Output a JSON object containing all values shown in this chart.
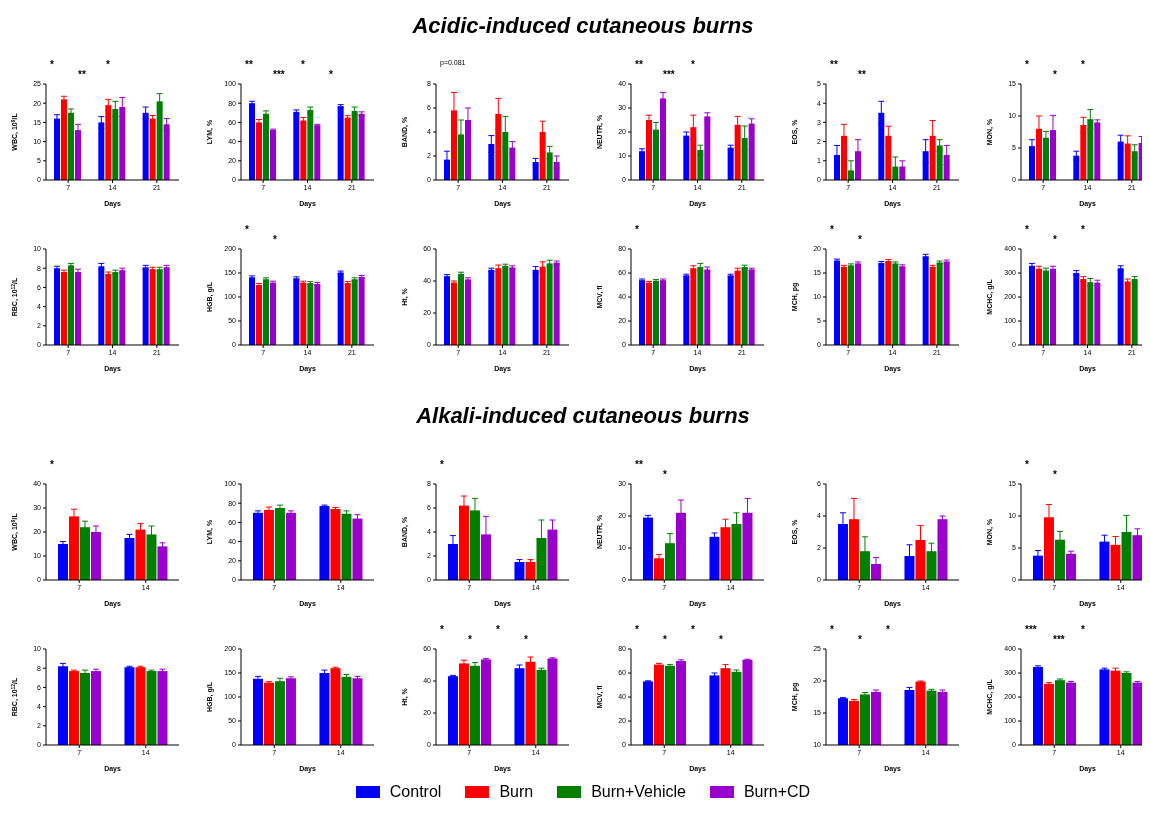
{
  "chart_data": [
    {
      "type": "other",
      "title": "Acidic-induced cutaneous burns"
    },
    {
      "type": "bar",
      "xlabel": "Days",
      "ylabel": "WBC, 10$^{9}$/L",
      "categories": [
        "7",
        "14",
        "21"
      ],
      "ylim": [
        0,
        25
      ],
      "yticks": [
        0,
        5,
        10,
        15,
        20,
        25
      ],
      "annotations": [
        "*",
        "**",
        "*"
      ],
      "series": [
        {
          "color": "#0000ff",
          "values": [
            16,
            15,
            17.5
          ],
          "errors": [
            1,
            1.5,
            1.5
          ]
        },
        {
          "color": "#ff0000",
          "values": [
            21,
            19.5,
            16
          ],
          "errors": [
            0.8,
            1.5,
            0.8
          ]
        },
        {
          "color": "#008000",
          "values": [
            17.5,
            18.5,
            20.5
          ],
          "errors": [
            1,
            2,
            2
          ]
        },
        {
          "color": "#9900cc",
          "values": [
            13,
            19,
            14.5
          ],
          "errors": [
            1.5,
            2.5,
            1.5
          ]
        }
      ]
    },
    {
      "type": "bar",
      "xlabel": "Days",
      "ylabel": "LYM, %",
      "categories": [
        "7",
        "14",
        "21"
      ],
      "ylim": [
        0,
        100
      ],
      "yticks": [
        0,
        20,
        40,
        60,
        80,
        100
      ],
      "annotations": [
        "**",
        "***",
        "*",
        "*"
      ],
      "series": [
        {
          "color": "#0000ff",
          "values": [
            80,
            71,
            77
          ],
          "errors": [
            2,
            2,
            1.5
          ]
        },
        {
          "color": "#ff0000",
          "values": [
            60,
            62,
            65
          ],
          "errors": [
            3,
            3,
            2
          ]
        },
        {
          "color": "#008000",
          "values": [
            69,
            73,
            72
          ],
          "errors": [
            3,
            3,
            4
          ]
        },
        {
          "color": "#9900cc",
          "values": [
            52,
            57,
            69
          ],
          "errors": [
            1,
            1,
            2
          ]
        }
      ]
    },
    {
      "type": "bar",
      "xlabel": "Days",
      "ylabel": "BAND, %",
      "categories": [
        "7",
        "14",
        "21"
      ],
      "ylim": [
        0,
        8
      ],
      "yticks": [
        0,
        2,
        4,
        6,
        8
      ],
      "annotations": [
        "p=0.081"
      ],
      "series": [
        {
          "color": "#0000ff",
          "values": [
            1.7,
            3,
            1.5
          ],
          "errors": [
            0.7,
            0.7,
            0.3
          ]
        },
        {
          "color": "#ff0000",
          "values": [
            5.8,
            5.5,
            4
          ],
          "errors": [
            1.5,
            1.3,
            0.9
          ]
        },
        {
          "color": "#008000",
          "values": [
            3.8,
            4,
            2.3
          ],
          "errors": [
            1.2,
            1.3,
            0.5
          ]
        },
        {
          "color": "#9900cc",
          "values": [
            5,
            2.7,
            1.5
          ],
          "errors": [
            1,
            0.5,
            0.5
          ]
        }
      ]
    },
    {
      "type": "bar",
      "xlabel": "Days",
      "ylabel": "NEUTR, %",
      "categories": [
        "7",
        "14",
        "21"
      ],
      "ylim": [
        0,
        40
      ],
      "yticks": [
        0,
        10,
        20,
        30,
        40
      ],
      "annotations": [
        "**",
        "***",
        "*"
      ],
      "series": [
        {
          "color": "#0000ff",
          "values": [
            12,
            18.5,
            13.5
          ],
          "errors": [
            1,
            1.5,
            1
          ]
        },
        {
          "color": "#ff0000",
          "values": [
            25,
            22,
            23
          ],
          "errors": [
            2,
            5,
            3.5
          ]
        },
        {
          "color": "#008000",
          "values": [
            21,
            12.5,
            17.5
          ],
          "errors": [
            3,
            2,
            5
          ]
        },
        {
          "color": "#9900cc",
          "values": [
            34,
            26.5,
            23.5
          ],
          "errors": [
            2.5,
            1.5,
            2
          ]
        }
      ]
    },
    {
      "type": "bar",
      "xlabel": "Days",
      "ylabel": "EOS, %",
      "categories": [
        "7",
        "14",
        "21"
      ],
      "ylim": [
        0,
        5
      ],
      "yticks": [
        0,
        1,
        2,
        3,
        4,
        5
      ],
      "annotations": [
        "**",
        "**"
      ],
      "series": [
        {
          "color": "#0000ff",
          "values": [
            1.3,
            3.5,
            1.5
          ],
          "errors": [
            0.5,
            0.6,
            0.6
          ]
        },
        {
          "color": "#ff0000",
          "values": [
            2.3,
            2.3,
            2.3
          ],
          "errors": [
            0.6,
            0.5,
            0.8
          ]
        },
        {
          "color": "#008000",
          "values": [
            0.5,
            0.7,
            1.8
          ],
          "errors": [
            0.5,
            0.5,
            0.3
          ]
        },
        {
          "color": "#9900cc",
          "values": [
            1.5,
            0.7,
            1.3
          ],
          "errors": [
            0.6,
            0.3,
            0.5
          ]
        }
      ]
    },
    {
      "type": "bar",
      "xlabel": "Days",
      "ylabel": "MON, %",
      "categories": [
        "7",
        "14",
        "21"
      ],
      "ylim": [
        0,
        15
      ],
      "yticks": [
        0,
        5,
        10,
        15
      ],
      "annotations": [
        "*",
        "*",
        "*"
      ],
      "series": [
        {
          "color": "#0000ff",
          "values": [
            5.3,
            3.8,
            6
          ],
          "errors": [
            1,
            0.7,
            1
          ]
        },
        {
          "color": "#ff0000",
          "values": [
            8,
            8.6,
            5.7
          ],
          "errors": [
            2,
            1.2,
            1.2
          ]
        },
        {
          "color": "#008000",
          "values": [
            6.6,
            9.5,
            4.5
          ],
          "errors": [
            1,
            1.5,
            1
          ]
        },
        {
          "color": "#9900cc",
          "values": [
            7.8,
            9,
            5.8
          ],
          "errors": [
            2.3,
            0.4,
            1
          ]
        }
      ]
    },
    {
      "type": "bar",
      "xlabel": "Days",
      "ylabel": "RBC, 10$^{12}$/L",
      "categories": [
        "7",
        "14",
        "21"
      ],
      "ylim": [
        0,
        10
      ],
      "yticks": [
        0,
        2,
        4,
        6,
        8,
        10
      ],
      "series": [
        {
          "color": "#0000ff",
          "values": [
            8,
            8.2,
            8.1
          ],
          "errors": [
            0.2,
            0.3,
            0.2
          ]
        },
        {
          "color": "#ff0000",
          "values": [
            7.6,
            7.4,
            7.9
          ],
          "errors": [
            0.2,
            0.2,
            0.2
          ]
        },
        {
          "color": "#008000",
          "values": [
            8.3,
            7.6,
            7.9
          ],
          "errors": [
            0.2,
            0.2,
            0.2
          ]
        },
        {
          "color": "#9900cc",
          "values": [
            7.6,
            7.8,
            8.1
          ],
          "errors": [
            0.3,
            0.2,
            0.2
          ]
        }
      ]
    },
    {
      "type": "bar",
      "xlabel": "Days",
      "ylabel": "HGB, g/L",
      "categories": [
        "7",
        "14",
        "21"
      ],
      "ylim": [
        0,
        200
      ],
      "yticks": [
        0,
        50,
        100,
        150,
        200
      ],
      "annotations": [
        "*",
        "*"
      ],
      "series": [
        {
          "color": "#0000ff",
          "values": [
            141,
            139,
            151
          ],
          "errors": [
            3,
            3,
            3
          ]
        },
        {
          "color": "#ff0000",
          "values": [
            125,
            130,
            129
          ],
          "errors": [
            3,
            3,
            3
          ]
        },
        {
          "color": "#008000",
          "values": [
            137,
            129,
            137
          ],
          "errors": [
            3,
            3,
            3
          ]
        },
        {
          "color": "#9900cc",
          "values": [
            130,
            127,
            142
          ],
          "errors": [
            3,
            3,
            3
          ]
        }
      ]
    },
    {
      "type": "bar",
      "xlabel": "Days",
      "ylabel": "Ht, %",
      "categories": [
        "7",
        "14",
        "21"
      ],
      "ylim": [
        0,
        60
      ],
      "yticks": [
        0,
        20,
        40,
        60
      ],
      "series": [
        {
          "color": "#0000ff",
          "values": [
            43,
            47,
            47
          ],
          "errors": [
            1,
            1,
            2
          ]
        },
        {
          "color": "#ff0000",
          "values": [
            39,
            48,
            49
          ],
          "errors": [
            1,
            2,
            3
          ]
        },
        {
          "color": "#008000",
          "values": [
            44.5,
            49.5,
            51
          ],
          "errors": [
            1,
            1,
            2
          ]
        },
        {
          "color": "#9900cc",
          "values": [
            41,
            48.5,
            51.5
          ],
          "errors": [
            1,
            1,
            1
          ]
        }
      ]
    },
    {
      "type": "bar",
      "xlabel": "Days",
      "ylabel": "MCV, fl",
      "categories": [
        "7",
        "14",
        "21"
      ],
      "ylim": [
        0,
        80
      ],
      "yticks": [
        0,
        20,
        40,
        60,
        80
      ],
      "annotations": [
        "*"
      ],
      "series": [
        {
          "color": "#0000ff",
          "values": [
            54,
            58,
            58
          ],
          "errors": [
            1,
            1,
            1
          ]
        },
        {
          "color": "#ff0000",
          "values": [
            52,
            64,
            62
          ],
          "errors": [
            1,
            2,
            2
          ]
        },
        {
          "color": "#008000",
          "values": [
            53.5,
            65,
            65
          ],
          "errors": [
            1,
            3,
            1.5
          ]
        },
        {
          "color": "#9900cc",
          "values": [
            54,
            63,
            63
          ],
          "errors": [
            1,
            2,
            1
          ]
        }
      ]
    },
    {
      "type": "bar",
      "xlabel": "Days",
      "ylabel": "MCH, pg",
      "categories": [
        "7",
        "14",
        "21"
      ],
      "ylim": [
        0,
        20
      ],
      "yticks": [
        0,
        5,
        10,
        15,
        20
      ],
      "annotations": [
        "*",
        "*"
      ],
      "series": [
        {
          "color": "#0000ff",
          "values": [
            17.6,
            17.1,
            18.5
          ],
          "errors": [
            0.3,
            0.3,
            0.4
          ]
        },
        {
          "color": "#ff0000",
          "values": [
            16.3,
            17.5,
            16.3
          ],
          "errors": [
            0.3,
            0.3,
            0.3
          ]
        },
        {
          "color": "#008000",
          "values": [
            16.6,
            17,
            17.2
          ],
          "errors": [
            0.3,
            0.3,
            0.3
          ]
        },
        {
          "color": "#9900cc",
          "values": [
            17,
            16.4,
            17.4
          ],
          "errors": [
            0.3,
            0.3,
            0.3
          ]
        }
      ]
    },
    {
      "type": "bar",
      "xlabel": "Days",
      "ylabel": "MCHC, g/L",
      "categories": [
        "7",
        "14",
        "21"
      ],
      "ylim": [
        0,
        400
      ],
      "yticks": [
        0,
        100,
        200,
        300,
        400
      ],
      "annotations": [
        "*",
        "*",
        "*"
      ],
      "series": [
        {
          "color": "#0000ff",
          "values": [
            330,
            300,
            320
          ],
          "errors": [
            10,
            10,
            10
          ]
        },
        {
          "color": "#ff0000",
          "values": [
            318,
            275,
            265
          ],
          "errors": [
            10,
            10,
            10
          ]
        },
        {
          "color": "#008000",
          "values": [
            310,
            262,
            275
          ],
          "errors": [
            10,
            15,
            10
          ]
        },
        {
          "color": "#9900cc",
          "values": [
            318,
            260,
            null
          ],
          "errors": [
            10,
            10,
            null
          ]
        }
      ]
    },
    {
      "type": "other",
      "title": "Alkali-induced cutaneous burns"
    },
    {
      "type": "bar",
      "xlabel": "Days",
      "ylabel": "WBC, 10$^{9}$/L",
      "categories": [
        "7",
        "14"
      ],
      "ylim": [
        0,
        40
      ],
      "yticks": [
        0,
        10,
        20,
        30,
        40
      ],
      "annotations": [
        "*"
      ],
      "series": [
        {
          "color": "#0000ff",
          "values": [
            15,
            17.5
          ],
          "errors": [
            1,
            1.5
          ]
        },
        {
          "color": "#ff0000",
          "values": [
            26.5,
            21
          ],
          "errors": [
            3,
            2.5
          ]
        },
        {
          "color": "#008000",
          "values": [
            22,
            19
          ],
          "errors": [
            2.5,
            3.5
          ]
        },
        {
          "color": "#9900cc",
          "values": [
            20,
            14
          ],
          "errors": [
            2.5,
            1.5
          ]
        }
      ]
    },
    {
      "type": "bar",
      "xlabel": "Days",
      "ylabel": "LYM, %",
      "categories": [
        "7",
        "14"
      ],
      "ylim": [
        0,
        100
      ],
      "yticks": [
        0,
        20,
        40,
        60,
        80,
        100
      ],
      "series": [
        {
          "color": "#0000ff",
          "values": [
            70,
            77
          ],
          "errors": [
            2,
            1
          ]
        },
        {
          "color": "#ff0000",
          "values": [
            73,
            74
          ],
          "errors": [
            3,
            1.5
          ]
        },
        {
          "color": "#008000",
          "values": [
            75,
            69
          ],
          "errors": [
            3,
            3
          ]
        },
        {
          "color": "#9900cc",
          "values": [
            70,
            64
          ],
          "errors": [
            2,
            4
          ]
        }
      ]
    },
    {
      "type": "bar",
      "xlabel": "Days",
      "ylabel": "BAND, %",
      "categories": [
        "7",
        "14"
      ],
      "ylim": [
        0,
        8
      ],
      "yticks": [
        0,
        2,
        4,
        6,
        8
      ],
      "annotations": [
        "*"
      ],
      "series": [
        {
          "color": "#0000ff",
          "values": [
            3,
            1.5
          ],
          "errors": [
            0.7,
            0.2
          ]
        },
        {
          "color": "#ff0000",
          "values": [
            6.2,
            1.5
          ],
          "errors": [
            0.8,
            0.2
          ]
        },
        {
          "color": "#008000",
          "values": [
            5.8,
            3.5
          ],
          "errors": [
            1,
            1.5
          ]
        },
        {
          "color": "#9900cc",
          "values": [
            3.8,
            4.2
          ],
          "errors": [
            1.5,
            0.8
          ]
        }
      ]
    },
    {
      "type": "bar",
      "xlabel": "Days",
      "ylabel": "NEUTR, %",
      "categories": [
        "7",
        "14"
      ],
      "ylim": [
        0,
        30
      ],
      "yticks": [
        0,
        10,
        20,
        30
      ],
      "annotations": [
        "**",
        "*"
      ],
      "series": [
        {
          "color": "#0000ff",
          "values": [
            19.5,
            13.5
          ],
          "errors": [
            0.7,
            1.2
          ]
        },
        {
          "color": "#ff0000",
          "values": [
            6.8,
            16.5
          ],
          "errors": [
            1.2,
            2.5
          ]
        },
        {
          "color": "#008000",
          "values": [
            11.5,
            17.5
          ],
          "errors": [
            3,
            3.5
          ]
        },
        {
          "color": "#9900cc",
          "values": [
            21,
            21
          ],
          "errors": [
            4,
            4.5
          ]
        }
      ]
    },
    {
      "type": "bar",
      "xlabel": "Days",
      "ylabel": "EOS, %",
      "categories": [
        "7",
        "14"
      ],
      "ylim": [
        0,
        6
      ],
      "yticks": [
        0,
        2,
        4,
        6
      ],
      "series": [
        {
          "color": "#0000ff",
          "values": [
            3.5,
            1.5
          ],
          "errors": [
            0.7,
            0.7
          ]
        },
        {
          "color": "#ff0000",
          "values": [
            3.8,
            2.5
          ],
          "errors": [
            1.3,
            0.9
          ]
        },
        {
          "color": "#008000",
          "values": [
            1.8,
            1.8
          ],
          "errors": [
            0.9,
            0.5
          ]
        },
        {
          "color": "#9900cc",
          "values": [
            1,
            3.8
          ],
          "errors": [
            0.4,
            0.2
          ]
        }
      ]
    },
    {
      "type": "bar",
      "xlabel": "Days",
      "ylabel": "MON, %",
      "categories": [
        "7",
        "14"
      ],
      "ylim": [
        0,
        15
      ],
      "yticks": [
        0,
        5,
        10,
        15
      ],
      "annotations": [
        "*",
        "*"
      ],
      "series": [
        {
          "color": "#0000ff",
          "values": [
            3.8,
            6
          ],
          "errors": [
            0.8,
            1
          ]
        },
        {
          "color": "#ff0000",
          "values": [
            9.8,
            5.5
          ],
          "errors": [
            2,
            1.3
          ]
        },
        {
          "color": "#008000",
          "values": [
            6.3,
            7.5
          ],
          "errors": [
            1.3,
            2.6
          ]
        },
        {
          "color": "#9900cc",
          "values": [
            4.1,
            7
          ],
          "errors": [
            0.4,
            1
          ]
        }
      ]
    },
    {
      "type": "bar",
      "xlabel": "Days",
      "ylabel": "RBC, 10$^{12}$/L",
      "categories": [
        "7",
        "14"
      ],
      "ylim": [
        0,
        10
      ],
      "yticks": [
        0,
        2,
        4,
        6,
        8,
        10
      ],
      "series": [
        {
          "color": "#0000ff",
          "values": [
            8.2,
            8.1
          ],
          "errors": [
            0.3,
            0.1
          ]
        },
        {
          "color": "#ff0000",
          "values": [
            7.7,
            8.1
          ],
          "errors": [
            0.1,
            0.1
          ]
        },
        {
          "color": "#008000",
          "values": [
            7.5,
            7.7
          ],
          "errors": [
            0.3,
            0.1
          ]
        },
        {
          "color": "#9900cc",
          "values": [
            7.7,
            7.7
          ],
          "errors": [
            0.2,
            0.2
          ]
        }
      ]
    },
    {
      "type": "bar",
      "xlabel": "Days",
      "ylabel": "HGB, g/L",
      "categories": [
        "7",
        "14"
      ],
      "ylim": [
        0,
        200
      ],
      "yticks": [
        0,
        50,
        100,
        150,
        200
      ],
      "series": [
        {
          "color": "#0000ff",
          "values": [
            138,
            150
          ],
          "errors": [
            5,
            6
          ]
        },
        {
          "color": "#ff0000",
          "values": [
            130,
            160
          ],
          "errors": [
            2,
            2
          ]
        },
        {
          "color": "#008000",
          "values": [
            133,
            142
          ],
          "errors": [
            6,
            5
          ]
        },
        {
          "color": "#9900cc",
          "values": [
            139,
            139
          ],
          "errors": [
            3,
            4
          ]
        }
      ]
    },
    {
      "type": "bar",
      "xlabel": "Days",
      "ylabel": "Ht, %",
      "categories": [
        "7",
        "14"
      ],
      "ylim": [
        0,
        60
      ],
      "yticks": [
        0,
        20,
        40,
        60
      ],
      "annotations": [
        "*",
        "*",
        "*",
        "*"
      ],
      "series": [
        {
          "color": "#0000ff",
          "values": [
            43,
            48
          ],
          "errors": [
            0.5,
            2
          ]
        },
        {
          "color": "#ff0000",
          "values": [
            51,
            52
          ],
          "errors": [
            2,
            3
          ]
        },
        {
          "color": "#008000",
          "values": [
            49.5,
            47
          ],
          "errors": [
            2,
            1
          ]
        },
        {
          "color": "#9900cc",
          "values": [
            53.5,
            54
          ],
          "errors": [
            0.5,
            0.5
          ]
        }
      ]
    },
    {
      "type": "bar",
      "xlabel": "Days",
      "ylabel": "MCV, fl",
      "categories": [
        "7",
        "14"
      ],
      "ylim": [
        0,
        80
      ],
      "yticks": [
        0,
        20,
        40,
        60,
        80
      ],
      "annotations": [
        "*",
        "*",
        "*",
        "*"
      ],
      "series": [
        {
          "color": "#0000ff",
          "values": [
            53,
            58
          ],
          "errors": [
            0.5,
            2
          ]
        },
        {
          "color": "#ff0000",
          "values": [
            67,
            64
          ],
          "errors": [
            1,
            3
          ]
        },
        {
          "color": "#008000",
          "values": [
            66,
            61
          ],
          "errors": [
            1,
            1.5
          ]
        },
        {
          "color": "#9900cc",
          "values": [
            70,
            71
          ],
          "errors": [
            1,
            0.5
          ]
        }
      ]
    },
    {
      "type": "bar",
      "xlabel": "Days",
      "ylabel": "MCH, pg",
      "categories": [
        "7",
        "14"
      ],
      "ylim": [
        10,
        25
      ],
      "yticks": [
        10,
        15,
        20,
        25
      ],
      "annotations": [
        "*",
        "*",
        "*"
      ],
      "series": [
        {
          "color": "#0000ff",
          "values": [
            17.3,
            18.6
          ],
          "errors": [
            0.1,
            0.4
          ]
        },
        {
          "color": "#ff0000",
          "values": [
            16.9,
            19.9
          ],
          "errors": [
            0.2,
            0.1
          ]
        },
        {
          "color": "#008000",
          "values": [
            17.9,
            18.5
          ],
          "errors": [
            0.3,
            0.2
          ]
        },
        {
          "color": "#9900cc",
          "values": [
            18.3,
            18.3
          ],
          "errors": [
            0.3,
            0.3
          ]
        }
      ]
    },
    {
      "type": "bar",
      "xlabel": "Days",
      "ylabel": "MCHC, g/L",
      "categories": [
        "7",
        "14"
      ],
      "ylim": [
        0,
        400
      ],
      "yticks": [
        0,
        100,
        200,
        300,
        400
      ],
      "annotations": [
        "***",
        "***",
        "*"
      ],
      "legend": "bottom",
      "series": [
        {
          "name": "Control",
          "color": "#0000ff",
          "values": [
            325,
            315
          ],
          "errors": [
            5,
            5
          ]
        },
        {
          "name": "Burn",
          "color": "#ff0000",
          "values": [
            255,
            310
          ],
          "errors": [
            5,
            10
          ]
        },
        {
          "name": "Burn+Vehicle",
          "color": "#008000",
          "values": [
            270,
            300
          ],
          "errors": [
            5,
            5
          ]
        },
        {
          "name": "Burn+CD",
          "color": "#9900cc",
          "values": [
            260,
            260
          ],
          "errors": [
            5,
            5
          ]
        }
      ]
    }
  ]
}
